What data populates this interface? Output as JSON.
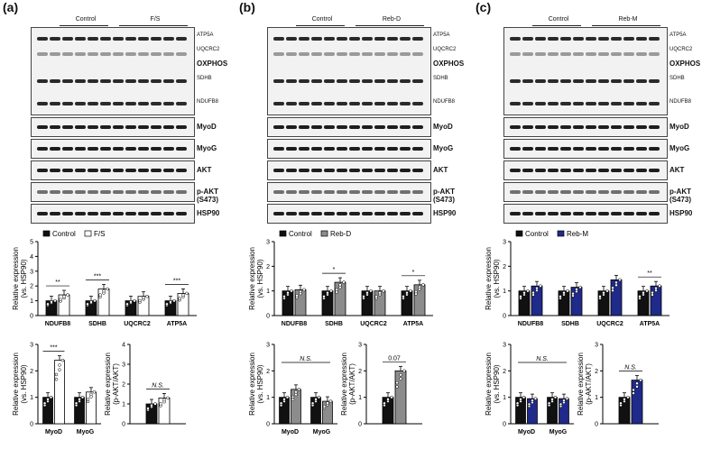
{
  "panels": [
    {
      "label": "(a)",
      "groups": [
        "Control",
        "F/S"
      ],
      "oxphos_bands": [
        "ATP5A",
        "UQCRC2",
        "OXPHOS",
        "SDHB",
        "NDUFB8"
      ],
      "blots": [
        "MyoD",
        "MyoG",
        "AKT",
        "p-AKT (S473)",
        "HSP90"
      ],
      "treat_color": "#ffffff",
      "charts": [
        {
          "type": "bar",
          "ylabel": [
            "Relative expression",
            "(vs. HSP90)"
          ],
          "ylim": [
            0,
            5
          ],
          "ticks": [
            "0",
            "1",
            "2",
            "3",
            "4",
            "5"
          ],
          "legend": [
            "Control",
            "F/S"
          ],
          "categories": [
            "NDUFB8",
            "SDHB",
            "UQCRC2",
            "ATP5A"
          ],
          "series": [
            {
              "name": "Control",
              "values": [
                1.0,
                1.0,
                1.0,
                1.0
              ]
            },
            {
              "name": "F/S",
              "values": [
                1.4,
                1.8,
                1.3,
                1.5
              ]
            }
          ],
          "sig": [
            "**",
            "***",
            "",
            "***"
          ]
        },
        {
          "type": "bar",
          "ylabel": [
            "Relative expression",
            "(vs. HSP90)"
          ],
          "ylim": [
            0,
            3
          ],
          "ticks": [
            "0",
            "1",
            "2",
            "3"
          ],
          "categories": [
            "MyoD",
            "MyoG"
          ],
          "series": [
            {
              "name": "Control",
              "values": [
                1.0,
                1.0
              ]
            },
            {
              "name": "F/S",
              "values": [
                2.4,
                1.2
              ]
            }
          ],
          "sig": [
            "***",
            ""
          ]
        },
        {
          "type": "bar",
          "ylabel": [
            "Relative expression",
            "(p-AKT/AKT)"
          ],
          "ylim": [
            0,
            4
          ],
          "ticks": [
            "0",
            "1",
            "2",
            "3",
            "4"
          ],
          "categories": [],
          "series": [
            {
              "name": "Control",
              "values": [
                1.0
              ]
            },
            {
              "name": "F/S",
              "values": [
                1.3
              ]
            }
          ],
          "sig": [
            "N.S."
          ]
        }
      ]
    },
    {
      "label": "(b)",
      "groups": [
        "Control",
        "Reb-D"
      ],
      "oxphos_bands": [
        "ATP5A",
        "UQCRC2",
        "OXPHOS",
        "SDHB",
        "NDUFB8"
      ],
      "blots": [
        "MyoD",
        "MyoG",
        "AKT",
        "p-AKT (S473)",
        "HSP90"
      ],
      "treat_color": "#8c8c8c",
      "charts": [
        {
          "type": "bar",
          "ylabel": [
            "Relative expression",
            "(vs. HSP90)"
          ],
          "ylim": [
            0,
            3
          ],
          "ticks": [
            "0",
            "1",
            "2",
            "3"
          ],
          "legend": [
            "Control",
            "Reb-D"
          ],
          "categories": [
            "NDUFB8",
            "SDHB",
            "UQCRC2",
            "ATP5A"
          ],
          "series": [
            {
              "name": "Control",
              "values": [
                1.0,
                1.0,
                1.0,
                1.0
              ]
            },
            {
              "name": "Reb-D",
              "values": [
                1.05,
                1.35,
                1.0,
                1.25
              ]
            }
          ],
          "sig": [
            "",
            "*",
            "",
            "*"
          ]
        },
        {
          "type": "bar",
          "ylabel": [
            "Relative expression",
            "(vs. HSP90)"
          ],
          "ylim": [
            0,
            3
          ],
          "ticks": [
            "0",
            "1",
            "2",
            "3"
          ],
          "categories": [
            "MyoD",
            "MyoG"
          ],
          "series": [
            {
              "name": "Control",
              "values": [
                1.0,
                1.0
              ]
            },
            {
              "name": "Reb-D",
              "values": [
                1.3,
                0.85
              ]
            }
          ],
          "sig": [
            "N.S."
          ]
        },
        {
          "type": "bar",
          "ylabel": [
            "Relative expression",
            "(p-AKT/AKT)"
          ],
          "ylim": [
            0,
            3
          ],
          "ticks": [
            "0",
            "1",
            "2",
            "3"
          ],
          "categories": [],
          "series": [
            {
              "name": "Control",
              "values": [
                1.0
              ]
            },
            {
              "name": "Reb-D",
              "values": [
                2.0
              ]
            }
          ],
          "sig": [
            "0.07"
          ]
        }
      ]
    },
    {
      "label": "(c)",
      "groups": [
        "Control",
        "Reb-M"
      ],
      "oxphos_bands": [
        "ATP5A",
        "UQCRC2",
        "OXPHOS",
        "SDHB",
        "NDUFB8"
      ],
      "blots": [
        "MyoD",
        "MyoG",
        "AKT",
        "p-AKT (S473)",
        "HSP90"
      ],
      "treat_color": "#1f2a8a",
      "charts": [
        {
          "type": "bar",
          "ylabel": [
            "Relative expression",
            "(vs. HSP90)"
          ],
          "ylim": [
            0,
            3
          ],
          "ticks": [
            "0",
            "1",
            "2",
            "3"
          ],
          "legend": [
            "Control",
            "Reb-M"
          ],
          "categories": [
            "NDUFB8",
            "SDHB",
            "UQCRC2",
            "ATP5A"
          ],
          "series": [
            {
              "name": "Control",
              "values": [
                1.0,
                1.0,
                1.0,
                1.0
              ]
            },
            {
              "name": "Reb-M",
              "values": [
                1.2,
                1.15,
                1.45,
                1.2
              ]
            }
          ],
          "sig": [
            "",
            "",
            "",
            "**"
          ]
        },
        {
          "type": "bar",
          "ylabel": [
            "Relative expression",
            "(vs. HSP90)"
          ],
          "ylim": [
            0,
            3
          ],
          "ticks": [
            "0",
            "1",
            "2",
            "3"
          ],
          "categories": [
            "MyoD",
            "MyoG"
          ],
          "series": [
            {
              "name": "Control",
              "values": [
                1.0,
                1.0
              ]
            },
            {
              "name": "Reb-M",
              "values": [
                0.95,
                0.95
              ]
            }
          ],
          "sig": [
            "N.S."
          ]
        },
        {
          "type": "bar",
          "ylabel": [
            "Relative expression",
            "(p-AKT/AKT)"
          ],
          "ylim": [
            0,
            3
          ],
          "ticks": [
            "0",
            "1",
            "2",
            "3"
          ],
          "categories": [],
          "series": [
            {
              "name": "Control",
              "values": [
                1.0
              ]
            },
            {
              "name": "Reb-M",
              "values": [
                1.65
              ]
            }
          ],
          "sig": [
            "N.S."
          ]
        }
      ]
    }
  ]
}
